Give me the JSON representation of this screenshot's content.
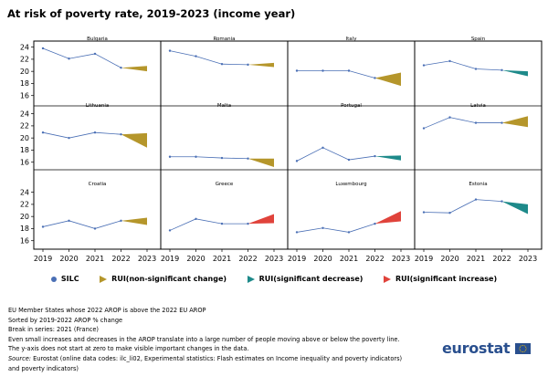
{
  "title": "At risk of poverty rate, 2019-2023 (income year)",
  "chart_data": {
    "type": "line",
    "x": [
      "2019",
      "2020",
      "2021",
      "2022",
      "2023"
    ],
    "yticks": [
      16,
      18,
      20,
      22,
      24
    ],
    "ylim": [
      14.6,
      25
    ],
    "colors": {
      "silc": "#4A6FB5",
      "nonsig": "#B5962B",
      "sigdec": "#1E8A8A",
      "siginc": "#E0433B"
    },
    "legend": [
      {
        "key": "silc",
        "label": "SILC",
        "shape": "dot"
      },
      {
        "key": "nonsig",
        "label": "RUI(non-significant change)",
        "shape": "tri"
      },
      {
        "key": "sigdec",
        "label": "RUI(significant decrease)",
        "shape": "tri"
      },
      {
        "key": "siginc",
        "label": "RUI(significant increase)",
        "shape": "tri"
      }
    ],
    "panels": [
      {
        "name": "Bulgaria",
        "values": [
          23.8,
          22.1,
          22.9,
          20.6
        ],
        "rui": [
          20.9,
          20.0
        ],
        "status": "nonsig"
      },
      {
        "name": "Romania",
        "values": [
          23.4,
          22.5,
          21.2,
          21.1
        ],
        "rui": [
          21.4,
          20.7
        ],
        "status": "nonsig"
      },
      {
        "name": "Italy",
        "values": [
          20.1,
          20.1,
          20.1,
          18.9
        ],
        "rui": [
          19.8,
          17.6
        ],
        "status": "nonsig"
      },
      {
        "name": "Spain",
        "values": [
          21.0,
          21.7,
          20.4,
          20.2
        ],
        "rui": [
          20.0,
          19.2
        ],
        "status": "sigdec"
      },
      {
        "name": "Lithuania",
        "values": [
          20.9,
          20.0,
          20.9,
          20.6
        ],
        "rui": [
          20.8,
          18.4
        ],
        "status": "nonsig"
      },
      {
        "name": "Malta",
        "values": [
          16.9,
          16.9,
          16.7,
          16.6
        ],
        "rui": [
          16.6,
          15.2
        ],
        "status": "nonsig"
      },
      {
        "name": "Portugal",
        "values": [
          16.2,
          18.4,
          16.4,
          17.0
        ],
        "rui": [
          17.1,
          16.3
        ],
        "status": "sigdec"
      },
      {
        "name": "Latvia",
        "values": [
          21.6,
          23.4,
          22.5,
          22.5
        ],
        "rui": [
          23.6,
          21.8
        ],
        "status": "nonsig"
      },
      {
        "name": "Croatia",
        "values": [
          18.3,
          19.3,
          18.0,
          19.3
        ],
        "rui": [
          19.8,
          18.6
        ],
        "status": "nonsig"
      },
      {
        "name": "Greece",
        "values": [
          17.7,
          19.6,
          18.8,
          18.8
        ],
        "rui": [
          20.4,
          18.9
        ],
        "status": "siginc"
      },
      {
        "name": "Luxembourg",
        "values": [
          17.4,
          18.1,
          17.4,
          18.8
        ],
        "rui": [
          20.9,
          19.2
        ],
        "status": "siginc"
      },
      {
        "name": "Estonia",
        "values": [
          20.7,
          20.6,
          22.8,
          22.5
        ],
        "rui": [
          22.0,
          20.4
        ],
        "status": "sigdec"
      }
    ]
  },
  "notes": [
    "EU Member States whose 2022 AROP is above the 2022 EU AROP",
    "Sorted by 2019-2022 AROP % change",
    "Break in series: 2021 (France)",
    "Even small increases and decreases in the AROP translate into a large number of people moving above or below the poverty line.",
    "The y-axis does not start at zero to make visible important changes in the data."
  ],
  "source": {
    "label": "Source:",
    "line1": " Eurostat (online data codes: ilc_li02, Experimental statistics: Flash estimates on Income inequality and poverty indicators)",
    "line2": "and poverty indicators)"
  },
  "logo_text": "eurostat"
}
